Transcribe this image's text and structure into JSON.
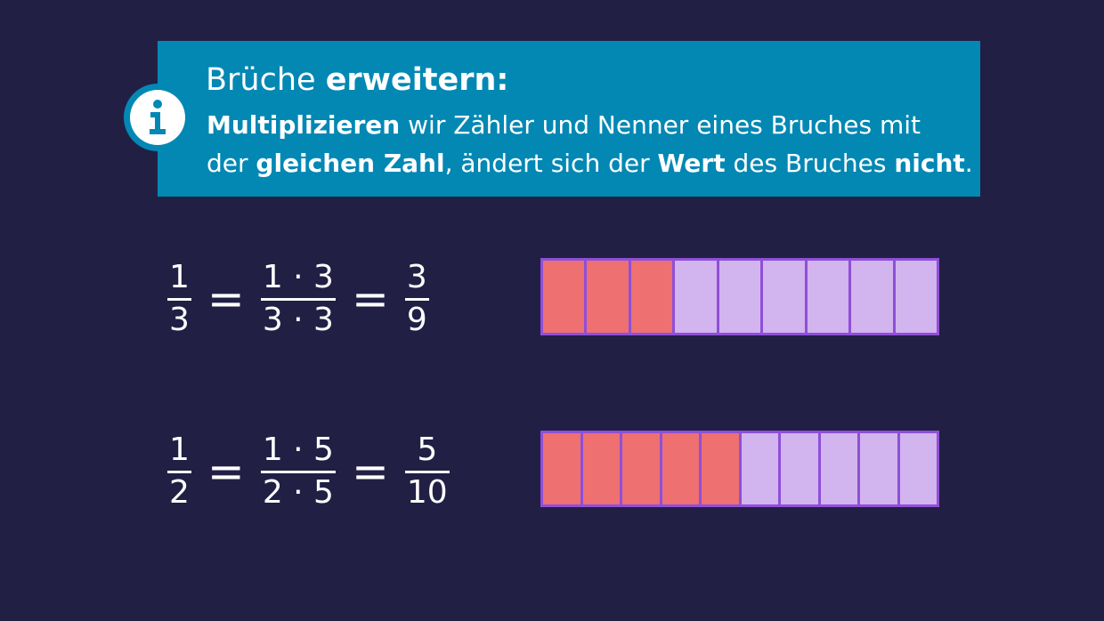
{
  "info": {
    "icon": "info-icon",
    "title_prefix": "Brüche",
    "title_bold": "erweitern:",
    "line1_bold": "Multiplizieren",
    "line1_rest": "wir Zähler und Nenner eines Bruches mit",
    "line2_pre": "der",
    "line2_bold1": "gleichen Zahl",
    "line2_mid1": ", ändert sich der",
    "line2_bold2": "Wert",
    "line2_mid2": "des Bruches",
    "line2_bold3": "nicht",
    "line2_end": "."
  },
  "examples": [
    {
      "frac1": {
        "num": "1",
        "den": "3"
      },
      "frac2": {
        "num": "1 · 3",
        "den": "3 · 3"
      },
      "frac3": {
        "num": "3",
        "den": "9"
      },
      "equals": "=",
      "strip": {
        "total": 9,
        "filled": 3
      }
    },
    {
      "frac1": {
        "num": "1",
        "den": "2"
      },
      "frac2": {
        "num": "1 · 5",
        "den": "2 · 5"
      },
      "frac3": {
        "num": "5",
        "den": "10"
      },
      "equals": "=",
      "strip": {
        "total": 10,
        "filled": 5
      }
    }
  ],
  "colors": {
    "background": "#221f45",
    "info_box": "#0388b4",
    "filled_cell": "#ee7070",
    "empty_cell": "#d2b4ee",
    "strip_border": "#8f4fd8"
  }
}
